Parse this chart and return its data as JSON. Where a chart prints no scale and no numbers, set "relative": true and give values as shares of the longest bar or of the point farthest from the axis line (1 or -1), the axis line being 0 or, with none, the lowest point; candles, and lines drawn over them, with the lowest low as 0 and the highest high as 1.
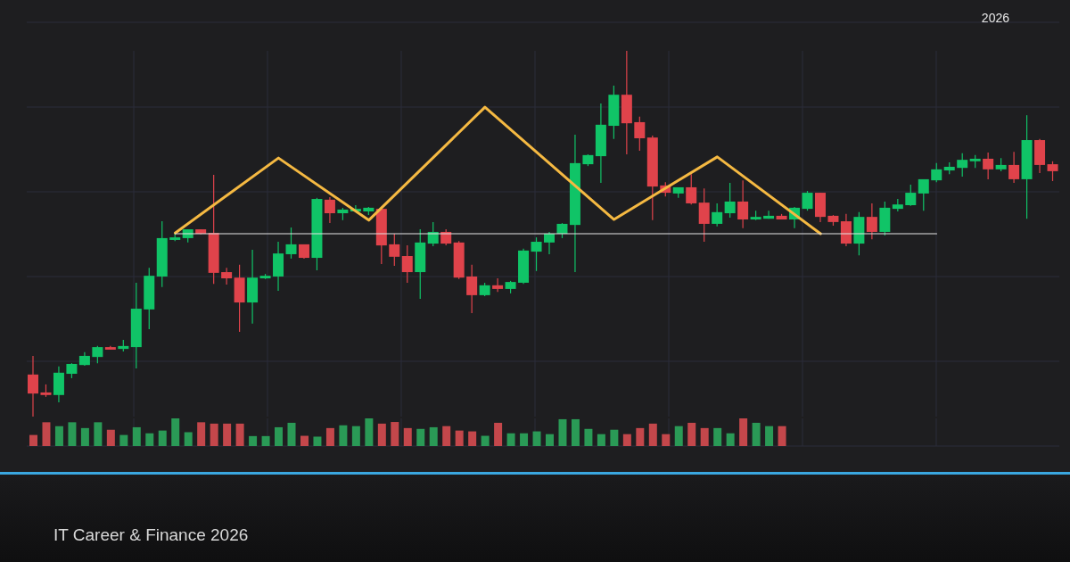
{
  "chart_data": [
    {
      "type": "candlestick",
      "relative": true,
      "grid": true,
      "annotations": [
        "2026",
        "IT Career & Finance 2026"
      ],
      "categories": [
        null,
        null,
        null,
        null,
        null,
        null,
        null,
        null,
        null,
        null,
        null,
        null,
        null,
        null,
        null,
        null,
        null,
        null,
        null,
        null,
        null,
        null,
        null,
        null,
        null,
        null,
        null,
        null,
        null,
        null,
        null,
        null,
        null,
        null,
        null,
        null,
        null,
        null,
        null,
        null,
        null,
        null,
        null,
        null,
        null,
        null,
        null,
        null,
        null,
        null,
        null,
        null,
        null,
        null,
        null,
        null,
        null,
        null,
        null,
        null,
        null,
        null,
        null,
        null,
        null,
        null,
        null,
        null,
        null,
        null,
        null,
        null,
        null,
        null,
        null,
        null,
        null,
        null,
        null,
        null
      ],
      "ohlc": [
        [
          0.115,
          0.166,
          0,
          0.063
        ],
        [
          0.066,
          0.088,
          0.054,
          0.059
        ],
        [
          0.059,
          0.137,
          0.039,
          0.12
        ],
        [
          0.117,
          0.146,
          0.105,
          0.144
        ],
        [
          0.141,
          0.176,
          0.139,
          0.166
        ],
        [
          0.163,
          0.193,
          0.146,
          0.19
        ],
        [
          0.19,
          0.193,
          0.183,
          0.183
        ],
        [
          0.185,
          0.21,
          0.178,
          0.193
        ],
        [
          0.19,
          0.366,
          0.132,
          0.295
        ],
        [
          0.293,
          0.407,
          0.239,
          0.385
        ],
        [
          0.383,
          0.534,
          0.354,
          0.488
        ],
        [
          0.483,
          0.505,
          0.48,
          0.49
        ],
        [
          0.488,
          0.512,
          0.476,
          0.512
        ],
        [
          0.512,
          0.512,
          0.498,
          0.5
        ],
        [
          0.502,
          0.661,
          0.363,
          0.393
        ],
        [
          0.395,
          0.407,
          0.361,
          0.378
        ],
        [
          0.38,
          0.415,
          0.232,
          0.312
        ],
        [
          0.312,
          0.456,
          0.254,
          0.38
        ],
        [
          0.378,
          0.39,
          0.376,
          0.385
        ],
        [
          0.383,
          0.478,
          0.344,
          0.446
        ],
        [
          0.444,
          0.517,
          0.432,
          0.471
        ],
        [
          0.471,
          0.471,
          0.432,
          0.434
        ],
        [
          0.434,
          0.598,
          0.4,
          0.595
        ],
        [
          0.593,
          0.6,
          0.529,
          0.556
        ],
        [
          0.556,
          0.571,
          0.537,
          0.566
        ],
        [
          0.561,
          0.578,
          0.559,
          0.568
        ],
        [
          0.561,
          0.573,
          0.551,
          0.571
        ],
        [
          0.568,
          0.568,
          0.417,
          0.468
        ],
        [
          0.471,
          0.5,
          0.412,
          0.437
        ],
        [
          0.439,
          0.468,
          0.366,
          0.395
        ],
        [
          0.395,
          0.512,
          0.322,
          0.476
        ],
        [
          0.473,
          0.532,
          0.466,
          0.505
        ],
        [
          0.505,
          0.512,
          0.468,
          0.473
        ],
        [
          0.476,
          0.48,
          0.376,
          0.38
        ],
        [
          0.383,
          0.415,
          0.283,
          0.332
        ],
        [
          0.332,
          0.366,
          0.329,
          0.359
        ],
        [
          0.359,
          0.378,
          0.341,
          0.349
        ],
        [
          0.349,
          0.371,
          0.337,
          0.368
        ],
        [
          0.366,
          0.459,
          0.363,
          0.454
        ],
        [
          0.451,
          0.49,
          0.398,
          0.478
        ],
        [
          0.476,
          0.505,
          0.444,
          0.5
        ],
        [
          0.5,
          0.529,
          0.488,
          0.527
        ],
        [
          0.524,
          0.771,
          0.395,
          0.693
        ],
        [
          0.69,
          0.717,
          0.685,
          0.715
        ],
        [
          0.712,
          0.856,
          0.639,
          0.798
        ],
        [
          0.795,
          0.905,
          0.759,
          0.88
        ],
        [
          0.88,
          1,
          0.717,
          0.802
        ],
        [
          0.805,
          0.82,
          0.727,
          0.761
        ],
        [
          0.763,
          0.768,
          0.537,
          0.629
        ],
        [
          0.632,
          0.641,
          0.602,
          0.612
        ],
        [
          0.61,
          0.627,
          0.598,
          0.627
        ],
        [
          0.627,
          0.663,
          0.58,
          0.583
        ],
        [
          0.585,
          0.624,
          0.478,
          0.527
        ],
        [
          0.527,
          0.583,
          0.52,
          0.559
        ],
        [
          0.556,
          0.639,
          0.544,
          0.588
        ],
        [
          0.588,
          0.646,
          0.515,
          0.539
        ],
        [
          0.539,
          0.563,
          0.537,
          0.546
        ],
        [
          0.541,
          0.563,
          0.541,
          0.549
        ],
        [
          0.549,
          0.554,
          0.539,
          0.539
        ],
        [
          0.539,
          0.573,
          0.515,
          0.571
        ],
        [
          0.568,
          0.617,
          0.563,
          0.612
        ],
        [
          0.612,
          0.612,
          0.532,
          0.546
        ],
        [
          0.549,
          0.551,
          0.522,
          0.532
        ],
        [
          0.534,
          0.554,
          0.466,
          0.473
        ],
        [
          0.473,
          0.559,
          0.441,
          0.546
        ],
        [
          0.546,
          0.583,
          0.485,
          0.505
        ],
        [
          0.505,
          0.588,
          0.495,
          0.571
        ],
        [
          0.568,
          0.595,
          0.561,
          0.58
        ],
        [
          0.578,
          0.634,
          0.576,
          0.612
        ],
        [
          0.61,
          0.649,
          0.563,
          0.649
        ],
        [
          0.646,
          0.693,
          0.641,
          0.676
        ],
        [
          0.673,
          0.695,
          0.663,
          0.683
        ],
        [
          0.68,
          0.72,
          0.656,
          0.702
        ],
        [
          0.698,
          0.715,
          0.68,
          0.705
        ],
        [
          0.705,
          0.722,
          0.649,
          0.676
        ],
        [
          0.676,
          0.707,
          0.671,
          0.688
        ],
        [
          0.688,
          0.724,
          0.639,
          0.649
        ],
        [
          0.649,
          0.824,
          0.541,
          0.756
        ],
        [
          0.756,
          0.759,
          0.666,
          0.688
        ],
        [
          0.69,
          0.698,
          0.644,
          0.671
        ]
      ],
      "colors": [
        "#e0434b",
        "#e0434b",
        "#10c467",
        "#10c467",
        "#10c467",
        "#10c467",
        "#e0434b",
        "#10c467",
        "#10c467",
        "#10c467",
        "#10c467",
        "#10c467",
        "#10c467",
        "#e0434b",
        "#e0434b",
        "#e0434b",
        "#e0434b",
        "#10c467",
        "#10c467",
        "#10c467",
        "#10c467",
        "#e0434b",
        "#10c467",
        "#e0434b",
        "#10c467",
        "#10c467",
        "#10c467",
        "#e0434b",
        "#e0434b",
        "#e0434b",
        "#10c467",
        "#10c467",
        "#e0434b",
        "#e0434b",
        "#e0434b",
        "#10c467",
        "#e0434b",
        "#10c467",
        "#10c467",
        "#10c467",
        "#10c467",
        "#10c467",
        "#10c467",
        "#10c467",
        "#10c467",
        "#10c467",
        "#e0434b",
        "#e0434b",
        "#e0434b",
        "#e0434b",
        "#10c467",
        "#e0434b",
        "#e0434b",
        "#10c467",
        "#10c467",
        "#e0434b",
        "#10c467",
        "#10c467",
        "#e0434b",
        "#10c467",
        "#10c467",
        "#e0434b",
        "#e0434b",
        "#e0434b",
        "#10c467",
        "#e0434b",
        "#10c467",
        "#10c467",
        "#10c467",
        "#10c467",
        "#10c467",
        "#10c467",
        "#10c467",
        "#10c467",
        "#e0434b",
        "#10c467",
        "#e0434b",
        "#10c467",
        "#e0434b",
        "#e0434b"
      ],
      "series": [
        {
          "type": "line",
          "color": "#f5b942",
          "values": [
            null,
            null,
            null,
            null,
            null,
            null,
            null,
            null,
            null,
            null,
            null,
            0.502,
            null,
            null,
            null,
            null,
            null,
            null,
            null,
            0.707,
            null,
            null,
            null,
            null,
            null,
            null,
            0.537,
            null,
            null,
            null,
            null,
            null,
            null,
            null,
            null,
            0.846,
            null,
            null,
            null,
            null,
            null,
            null,
            null,
            null,
            null,
            0.539,
            null,
            null,
            null,
            null,
            null,
            null,
            null,
            0.71,
            null,
            null,
            null,
            null,
            null,
            null,
            null,
            0.5,
            null,
            null,
            null,
            null,
            null,
            null,
            null,
            null,
            null,
            null,
            null,
            null,
            null,
            null,
            null,
            null,
            null,
            null
          ]
        },
        {
          "type": "line",
          "color": "#e6e6e6",
          "values": [
            null,
            null,
            null,
            null,
            null,
            null,
            null,
            null,
            null,
            null,
            null,
            0.5,
            null,
            null,
            null,
            null,
            null,
            null,
            null,
            null,
            null,
            null,
            null,
            null,
            null,
            null,
            null,
            null,
            null,
            null,
            null,
            null,
            null,
            null,
            null,
            null,
            null,
            null,
            null,
            null,
            null,
            null,
            null,
            null,
            null,
            null,
            null,
            null,
            null,
            null,
            null,
            null,
            null,
            null,
            null,
            null,
            null,
            null,
            null,
            null,
            null,
            null,
            null,
            null,
            null,
            null,
            null,
            null,
            null,
            null,
            0.5,
            null,
            null,
            null,
            null,
            null,
            null,
            null,
            null,
            null
          ]
        }
      ]
    },
    {
      "type": "bar",
      "relative": true,
      "grid": true,
      "categories": [
        null,
        null,
        null,
        null,
        null,
        null,
        null,
        null,
        null,
        null,
        null,
        null,
        null,
        null,
        null,
        null,
        null,
        null,
        null,
        null,
        null,
        null,
        null,
        null,
        null,
        null,
        null,
        null,
        null,
        null,
        null,
        null,
        null,
        null,
        null,
        null,
        null,
        null,
        null,
        null,
        null,
        null,
        null,
        null,
        null,
        null,
        null,
        null,
        null,
        null,
        null,
        null,
        null,
        null,
        null,
        null,
        null,
        null,
        null,
        null,
        null,
        null,
        null,
        null,
        null,
        null,
        null,
        null,
        null,
        null,
        null,
        null,
        null,
        null,
        null,
        null,
        null,
        null,
        null,
        null
      ],
      "values": [
        0.4,
        0.86,
        0.72,
        0.86,
        0.65,
        0.86,
        0.59,
        0.4,
        0.68,
        0.46,
        0.56,
        1,
        0.5,
        0.86,
        0.81,
        0.81,
        0.81,
        0.36,
        0.36,
        0.68,
        0.84,
        0.37,
        0.34,
        0.65,
        0.75,
        0.72,
        1,
        0.81,
        0.87,
        0.65,
        0.62,
        0.68,
        0.72,
        0.56,
        0.53,
        0.37,
        0.84,
        0.46,
        0.46,
        0.53,
        0.43,
        0.97,
        0.97,
        0.62,
        0.43,
        0.59,
        0.43,
        0.65,
        0.81,
        0.43,
        0.72,
        0.84,
        0.65,
        0.65,
        0.46,
        1,
        0.84,
        0.72,
        0.72,
        null,
        null,
        null,
        null,
        null,
        null,
        null,
        null,
        null,
        null,
        null,
        null,
        null,
        null,
        null,
        null,
        null,
        null,
        null,
        null,
        null
      ],
      "colors": [
        "#c4474b",
        "#c4474b",
        "#2a9a56",
        "#2a9a56",
        "#2a9a56",
        "#2a9a56",
        "#c4474b",
        "#2a9a56",
        "#2a9a56",
        "#2a9a56",
        "#2a9a56",
        "#2a9a56",
        "#2a9a56",
        "#c4474b",
        "#c4474b",
        "#c4474b",
        "#c4474b",
        "#2a9a56",
        "#2a9a56",
        "#2a9a56",
        "#2a9a56",
        "#c4474b",
        "#2a9a56",
        "#c4474b",
        "#2a9a56",
        "#2a9a56",
        "#2a9a56",
        "#c4474b",
        "#c4474b",
        "#c4474b",
        "#2a9a56",
        "#2a9a56",
        "#c4474b",
        "#c4474b",
        "#c4474b",
        "#2a9a56",
        "#c4474b",
        "#2a9a56",
        "#2a9a56",
        "#2a9a56",
        "#2a9a56",
        "#2a9a56",
        "#2a9a56",
        "#2a9a56",
        "#2a9a56",
        "#2a9a56",
        "#c4474b",
        "#c4474b",
        "#c4474b",
        "#c4474b",
        "#2a9a56",
        "#c4474b",
        "#c4474b",
        "#2a9a56",
        "#2a9a56",
        "#c4474b",
        "#2a9a56",
        "#2a9a56",
        "#c4474b",
        null,
        null,
        null,
        null,
        null,
        null,
        null,
        null,
        null,
        null,
        null,
        null,
        null,
        null,
        null,
        null,
        null,
        null,
        null,
        null,
        null
      ]
    }
  ]
}
